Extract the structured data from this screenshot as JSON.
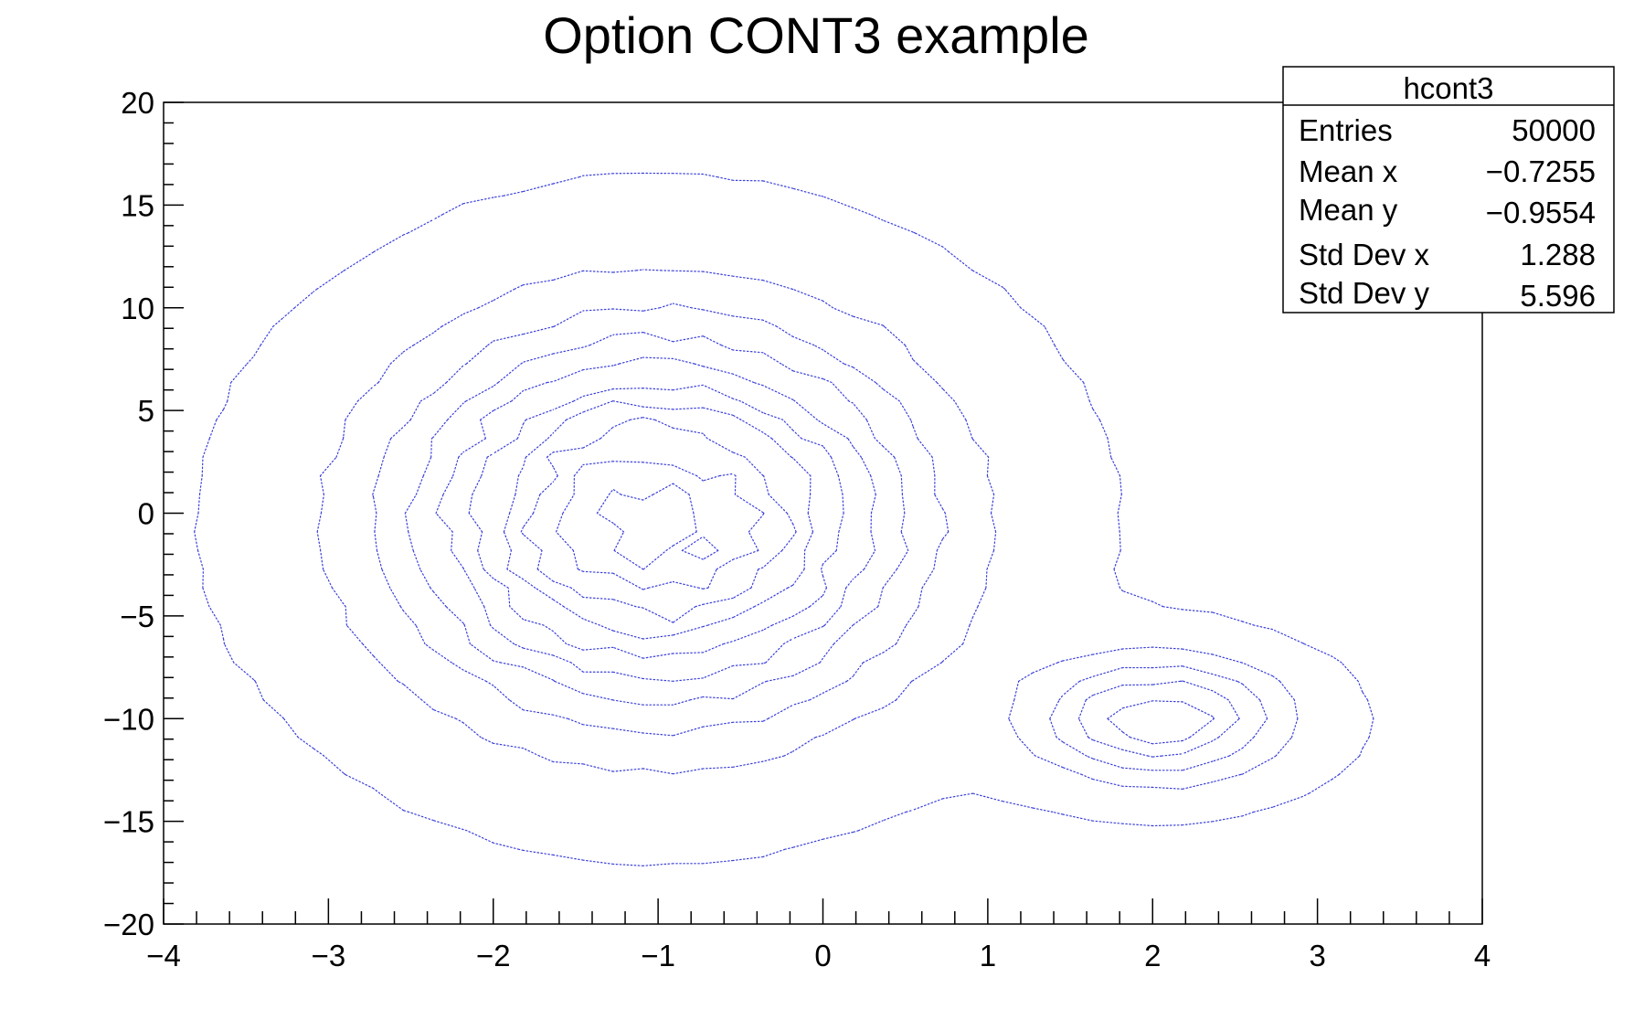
{
  "chart_data": {
    "type": "contour",
    "title": "Option CONT3 example",
    "xlabel": "",
    "ylabel": "",
    "xlim": [
      -4,
      4
    ],
    "ylim": [
      -20,
      20
    ],
    "x_ticks": [
      -4,
      -3,
      -2,
      -1,
      0,
      1,
      2,
      3,
      4
    ],
    "x_tick_labels": [
      "−4",
      "−3",
      "−2",
      "−1",
      "0",
      "1",
      "2",
      "3",
      "4"
    ],
    "y_ticks": [
      -20,
      -15,
      -10,
      -5,
      0,
      5,
      10,
      15,
      20
    ],
    "y_tick_labels": [
      "−20",
      "−15",
      "−10",
      "−5",
      "0",
      "5",
      "10",
      "15",
      "20"
    ],
    "grid": false,
    "line_style": "dotted",
    "line_color": "#3a3fd8",
    "contour_levels": 10,
    "blobs": [
      {
        "center": [
          -1.0,
          -0.3
        ],
        "sigma": [
          1.0,
          6.0
        ],
        "weight": 1.0
      },
      {
        "center": [
          2.05,
          -10.0
        ],
        "sigma": [
          0.5,
          2.0
        ],
        "weight": 0.5
      }
    ],
    "stats": {
      "name": "hcont3",
      "rows": [
        {
          "label": "Entries",
          "value": "50000"
        },
        {
          "label": "Mean x",
          "value": "−0.7255"
        },
        {
          "label": "Mean y",
          "value": "−0.9554"
        },
        {
          "label": "Std Dev x",
          "value": "1.288"
        },
        {
          "label": "Std Dev y",
          "value": "5.596"
        }
      ]
    }
  }
}
